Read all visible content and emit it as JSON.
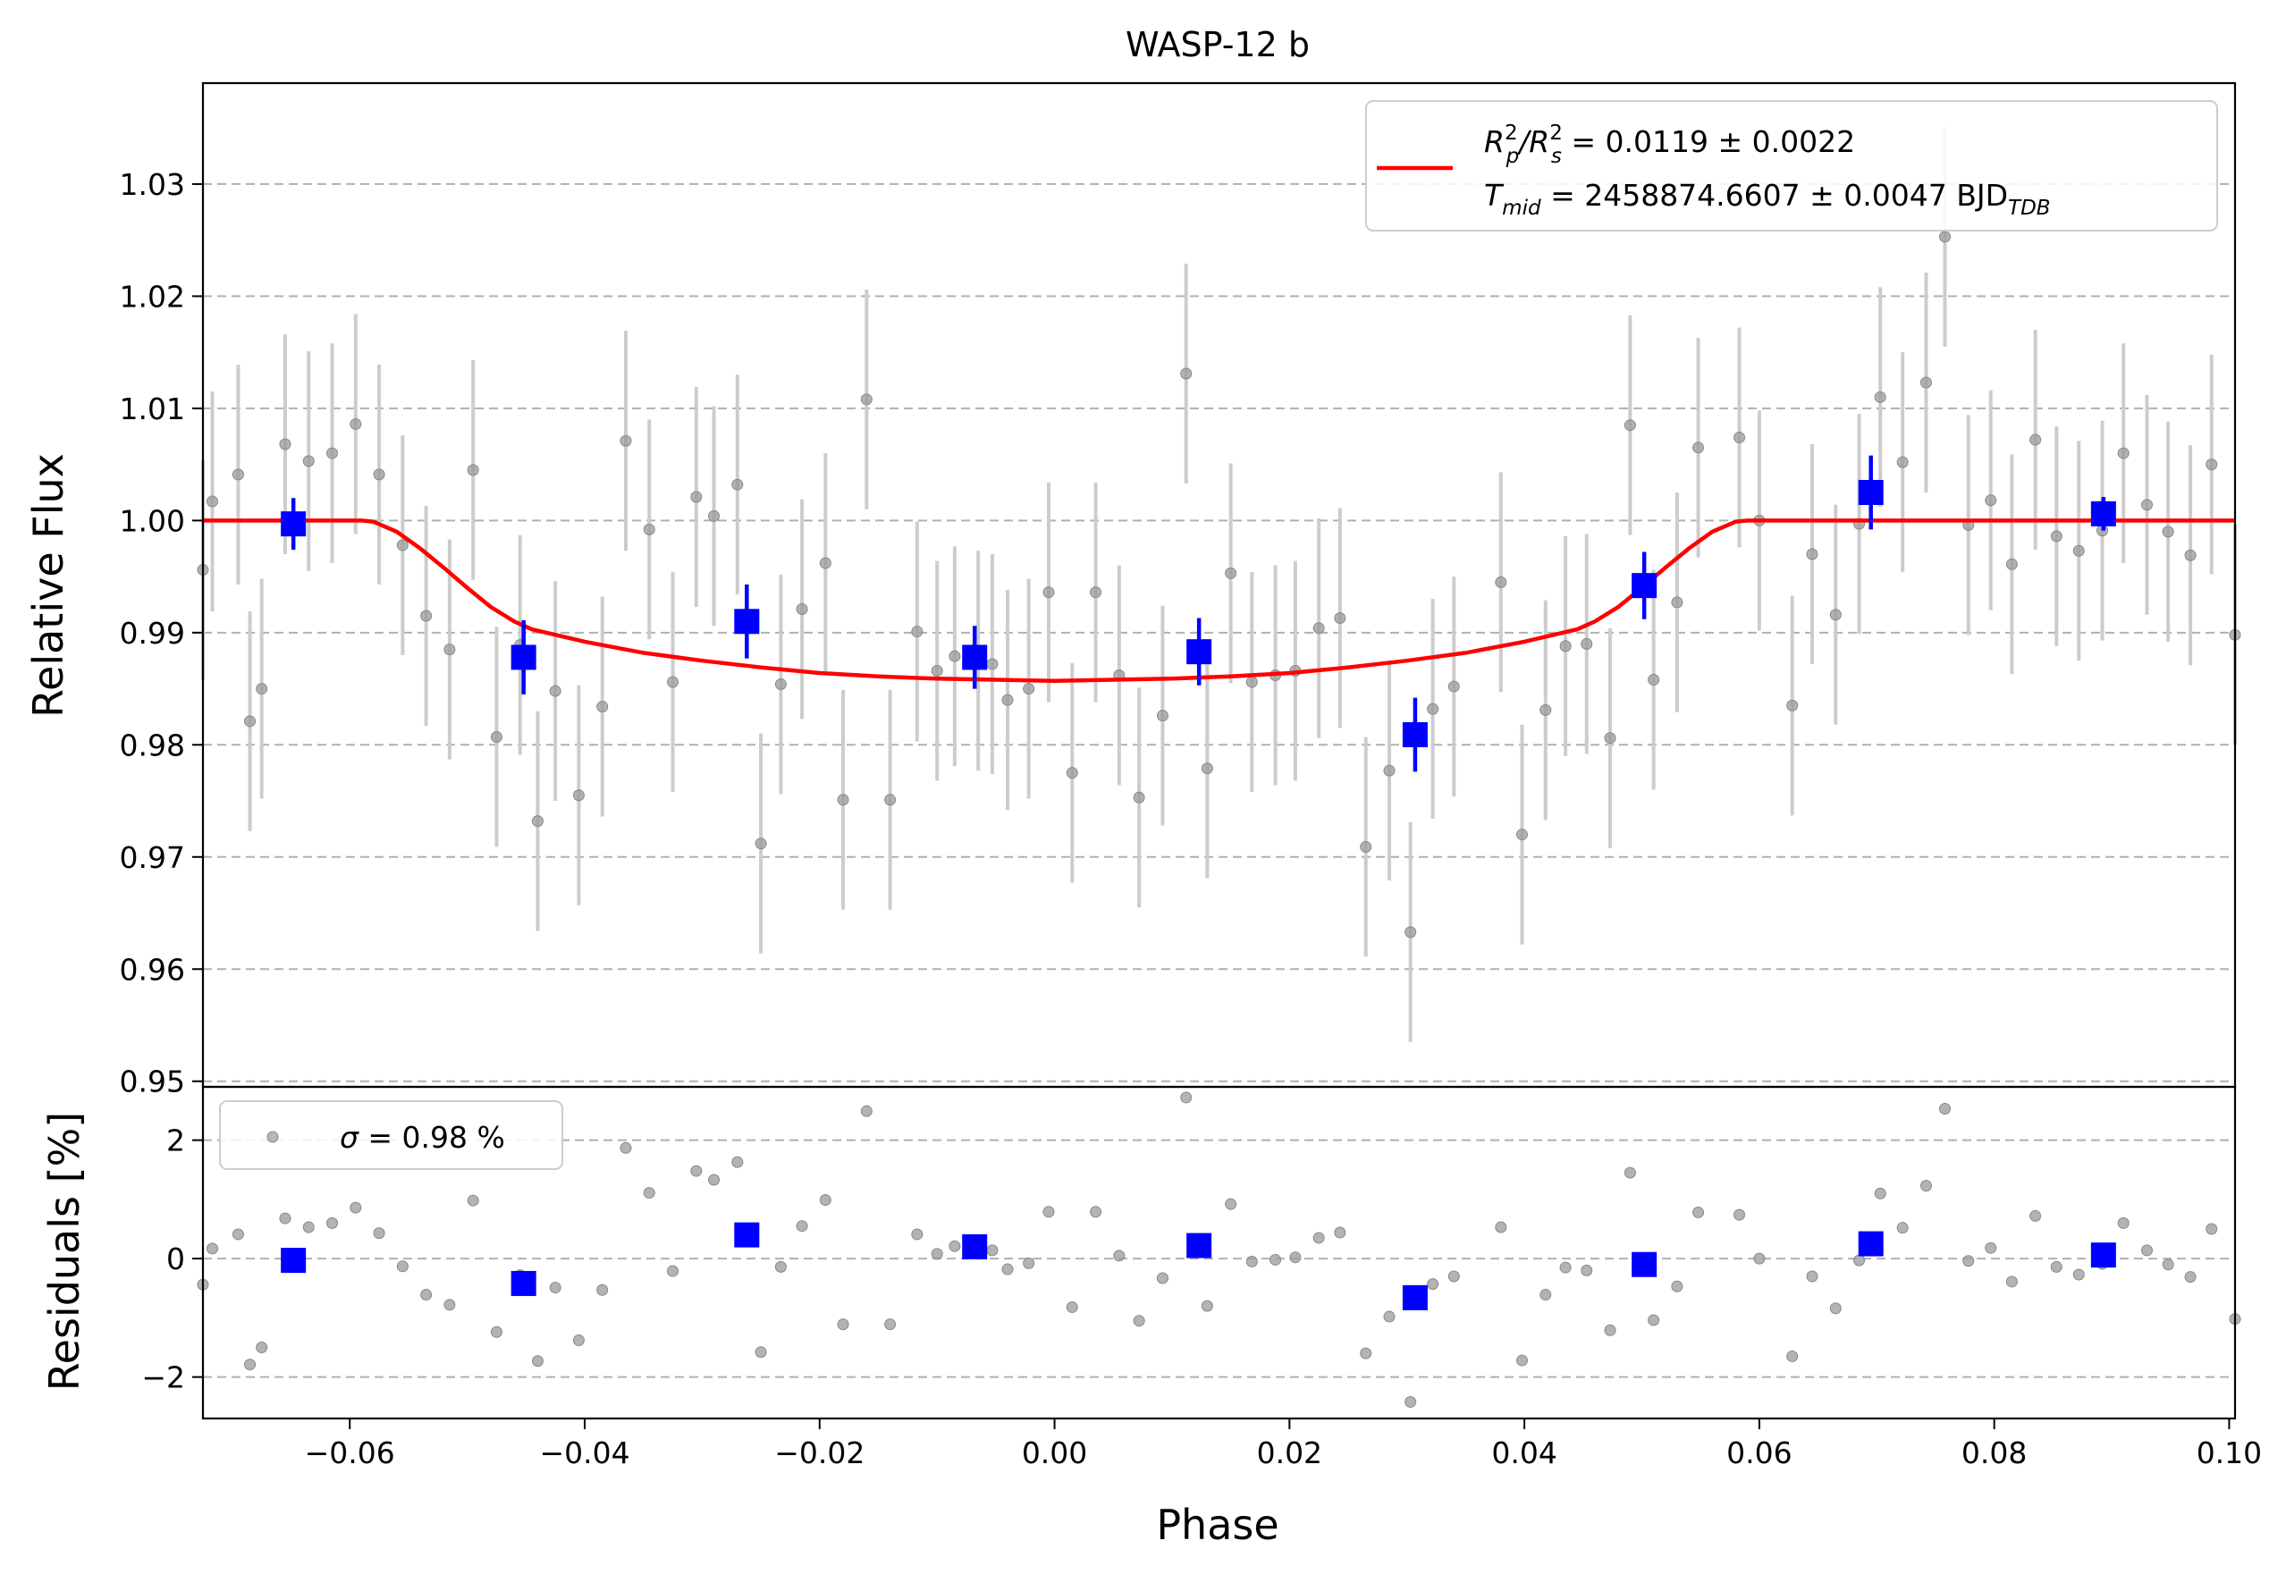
{
  "chart_data": {
    "type": "scatter",
    "title": "WASP-12 b",
    "xlabel": "Phase",
    "xlim": [
      -0.0725,
      0.1005
    ],
    "xticks": [
      -0.06,
      -0.04,
      -0.02,
      0.0,
      0.02,
      0.04,
      0.06,
      0.08,
      0.1
    ],
    "xtick_labels": [
      "−0.06",
      "−0.04",
      "−0.02",
      "0.00",
      "0.02",
      "0.04",
      "0.06",
      "0.08",
      "0.10"
    ],
    "top_panel": {
      "ylabel": "Relative Flux",
      "ylim": [
        0.9495,
        1.039
      ],
      "yticks": [
        0.95,
        0.96,
        0.97,
        0.98,
        0.99,
        1.0,
        1.01,
        1.02,
        1.03
      ],
      "ytick_labels": [
        "0.95",
        "0.96",
        "0.97",
        "0.98",
        "0.99",
        "1.00",
        "1.01",
        "1.02",
        "1.03"
      ],
      "grid": "horizontal-dashed",
      "legend": {
        "placement": "top-right",
        "line1_a": "R",
        "line1_a_sup": "2",
        "line1_a_sub": "p",
        "line1_slash": "/R",
        "line1_b_sup": "2",
        "line1_b_sub": "s",
        "line1_value": " = 0.0119 ± 0.0022",
        "line2_a": "T",
        "line2_a_sub": "mid",
        "line2_value": " = 2458874.6607 ± 0.0047 BJD",
        "line2_unit_sub": "TDB"
      },
      "raw_error": 0.0098,
      "raw_points": [
        [
          -0.0725,
          0.9956
        ],
        [
          -0.0717,
          1.0017
        ],
        [
          -0.0695,
          1.0041
        ],
        [
          -0.0685,
          0.9821
        ],
        [
          -0.0675,
          0.985
        ],
        [
          -0.0655,
          1.0068
        ],
        [
          -0.0635,
          1.0053
        ],
        [
          -0.0615,
          1.006
        ],
        [
          -0.0595,
          1.0086
        ],
        [
          -0.0575,
          1.0041
        ],
        [
          -0.0555,
          0.9978
        ],
        [
          -0.0535,
          0.9915
        ],
        [
          -0.0515,
          0.9885
        ],
        [
          -0.0495,
          1.0045
        ],
        [
          -0.0475,
          0.9807
        ],
        [
          -0.0455,
          0.9889
        ],
        [
          -0.044,
          0.9732
        ],
        [
          -0.0425,
          0.9848
        ],
        [
          -0.0405,
          0.9755
        ],
        [
          -0.0385,
          0.9834
        ],
        [
          -0.0365,
          1.0071
        ],
        [
          -0.0345,
          0.9992
        ],
        [
          -0.0325,
          0.9856
        ],
        [
          -0.0305,
          1.0021
        ],
        [
          -0.029,
          1.0004
        ],
        [
          -0.027,
          1.0032
        ],
        [
          -0.025,
          0.9712
        ],
        [
          -0.0233,
          0.9854
        ],
        [
          -0.0215,
          0.9921
        ],
        [
          -0.0195,
          0.9962
        ],
        [
          -0.018,
          0.9751
        ],
        [
          -0.016,
          1.0108
        ],
        [
          -0.014,
          0.9751
        ],
        [
          -0.0117,
          0.9901
        ],
        [
          -0.01,
          0.9866
        ],
        [
          -0.0085,
          0.9879
        ],
        [
          -0.0065,
          0.9875
        ],
        [
          -0.0053,
          0.9872
        ],
        [
          -0.004,
          0.984
        ],
        [
          -0.0022,
          0.985
        ],
        [
          -0.0005,
          0.9936
        ],
        [
          0.0015,
          0.9775
        ],
        [
          0.0035,
          0.9936
        ],
        [
          0.0055,
          0.9862
        ],
        [
          0.0072,
          0.9753
        ],
        [
          0.0092,
          0.9826
        ],
        [
          0.0112,
          1.0131
        ],
        [
          0.013,
          0.9779
        ],
        [
          0.015,
          0.9953
        ],
        [
          0.0168,
          0.9856
        ],
        [
          0.0188,
          0.9862
        ],
        [
          0.0205,
          0.9866
        ],
        [
          0.0225,
          0.9904
        ],
        [
          0.0243,
          0.9913
        ],
        [
          0.0265,
          0.9709
        ],
        [
          0.0285,
          0.9777
        ],
        [
          0.0303,
          0.9633
        ],
        [
          0.0322,
          0.9832
        ],
        [
          0.034,
          0.9852
        ],
        [
          0.038,
          0.9945
        ],
        [
          0.0398,
          0.972
        ],
        [
          0.0418,
          0.9831
        ],
        [
          0.0435,
          0.9888
        ],
        [
          0.0453,
          0.989
        ],
        [
          0.0473,
          0.9806
        ],
        [
          0.049,
          1.0085
        ],
        [
          0.051,
          0.9858
        ],
        [
          0.053,
          0.9927
        ],
        [
          0.0548,
          1.0065
        ],
        [
          0.0583,
          1.0074
        ],
        [
          0.06,
          1.0
        ],
        [
          0.0628,
          0.9835
        ],
        [
          0.0645,
          0.997
        ],
        [
          0.0665,
          0.9916
        ],
        [
          0.0685,
          0.9997
        ],
        [
          0.0703,
          1.011
        ],
        [
          0.0722,
          1.0052
        ],
        [
          0.0742,
          1.0123
        ],
        [
          0.0758,
          1.0253
        ],
        [
          0.0778,
          0.9996
        ],
        [
          0.0797,
          1.0018
        ],
        [
          0.0815,
          0.9961
        ],
        [
          0.0835,
          1.0072
        ],
        [
          0.0853,
          0.9986
        ],
        [
          0.0872,
          0.9973
        ],
        [
          0.0892,
          0.9991
        ],
        [
          0.091,
          1.006
        ],
        [
          0.093,
          1.0014
        ],
        [
          0.0948,
          0.999
        ],
        [
          0.0967,
          0.9969
        ],
        [
          0.0985,
          1.005
        ],
        [
          0.1005,
          0.9898
        ]
      ],
      "binned_points": [
        [
          -0.0648,
          0.9997,
          0.0023
        ],
        [
          -0.0452,
          0.9878,
          0.0033
        ],
        [
          -0.0262,
          0.991,
          0.0033
        ],
        [
          -0.0068,
          0.9878,
          0.0028
        ],
        [
          0.0123,
          0.9883,
          0.003
        ],
        [
          0.0307,
          0.9809,
          0.0033
        ],
        [
          0.0502,
          0.9942,
          0.003
        ],
        [
          0.0695,
          1.0025,
          0.0033
        ],
        [
          0.0893,
          1.0006,
          0.0015
        ]
      ],
      "model_curve": [
        [
          -0.0725,
          1.0
        ],
        [
          -0.059,
          1.0
        ],
        [
          -0.058,
          0.9999
        ],
        [
          -0.056,
          0.999
        ],
        [
          -0.054,
          0.9975
        ],
        [
          -0.052,
          0.9958
        ],
        [
          -0.05,
          0.994
        ],
        [
          -0.048,
          0.9923
        ],
        [
          -0.046,
          0.991
        ],
        [
          -0.0445,
          0.9903
        ],
        [
          -0.04,
          0.9892
        ],
        [
          -0.035,
          0.9882
        ],
        [
          -0.03,
          0.9875
        ],
        [
          -0.025,
          0.9869
        ],
        [
          -0.02,
          0.9864
        ],
        [
          -0.015,
          0.9861
        ],
        [
          -0.01,
          0.9859
        ],
        [
          -0.005,
          0.9858
        ],
        [
          0.0,
          0.9857
        ],
        [
          0.005,
          0.9858
        ],
        [
          0.01,
          0.9859
        ],
        [
          0.015,
          0.9861
        ],
        [
          0.02,
          0.9864
        ],
        [
          0.025,
          0.9869
        ],
        [
          0.03,
          0.9875
        ],
        [
          0.035,
          0.9882
        ],
        [
          0.04,
          0.9892
        ],
        [
          0.0445,
          0.9903
        ],
        [
          0.046,
          0.991
        ],
        [
          0.048,
          0.9923
        ],
        [
          0.05,
          0.994
        ],
        [
          0.052,
          0.9958
        ],
        [
          0.054,
          0.9975
        ],
        [
          0.056,
          0.999
        ],
        [
          0.058,
          0.9999
        ],
        [
          0.059,
          1.0
        ],
        [
          0.1005,
          1.0
        ]
      ]
    },
    "bottom_panel": {
      "ylabel": "Residuals [%]",
      "ylim": [
        -2.7,
        2.9
      ],
      "yticks": [
        -2,
        0,
        2
      ],
      "ytick_labels": [
        "−2",
        "0",
        "2"
      ],
      "grid": "horizontal-dashed",
      "legend": {
        "placement": "top-left",
        "sigma_symbol": "σ",
        "sigma_text": " = 0.98 %"
      },
      "raw_residuals": [
        [
          -0.0725,
          -0.44
        ],
        [
          -0.0717,
          0.17
        ],
        [
          -0.0695,
          0.41
        ],
        [
          -0.0685,
          -1.79
        ],
        [
          -0.0675,
          -1.5
        ],
        [
          -0.0655,
          0.68
        ],
        [
          -0.0635,
          0.53
        ],
        [
          -0.0615,
          0.6
        ],
        [
          -0.0595,
          0.86
        ],
        [
          -0.0575,
          0.43
        ],
        [
          -0.0555,
          -0.13
        ],
        [
          -0.0535,
          -0.61
        ],
        [
          -0.0515,
          -0.78
        ],
        [
          -0.0495,
          0.98
        ],
        [
          -0.0475,
          -1.24
        ],
        [
          -0.0455,
          -0.28
        ],
        [
          -0.044,
          -1.73
        ],
        [
          -0.0425,
          -0.49
        ],
        [
          -0.0405,
          -1.38
        ],
        [
          -0.0385,
          -0.53
        ],
        [
          -0.0365,
          1.87
        ],
        [
          -0.0345,
          1.11
        ],
        [
          -0.0325,
          -0.21
        ],
        [
          -0.0305,
          1.48
        ],
        [
          -0.029,
          1.33
        ],
        [
          -0.027,
          1.63
        ],
        [
          -0.025,
          -1.58
        ],
        [
          -0.0233,
          -0.14
        ],
        [
          -0.0215,
          0.55
        ],
        [
          -0.0195,
          0.99
        ],
        [
          -0.018,
          -1.11
        ],
        [
          -0.016,
          2.49
        ],
        [
          -0.014,
          -1.11
        ],
        [
          -0.0117,
          0.41
        ],
        [
          -0.01,
          0.08
        ],
        [
          -0.0085,
          0.21
        ],
        [
          -0.0065,
          0.17
        ],
        [
          -0.0053,
          0.14
        ],
        [
          -0.004,
          -0.18
        ],
        [
          -0.0022,
          -0.08
        ],
        [
          -0.0005,
          0.79
        ],
        [
          0.0015,
          -0.82
        ],
        [
          0.0035,
          0.79
        ],
        [
          0.0055,
          0.05
        ],
        [
          0.0072,
          -1.05
        ],
        [
          0.0092,
          -0.33
        ],
        [
          0.0112,
          2.72
        ],
        [
          0.013,
          -0.8
        ],
        [
          0.015,
          0.92
        ],
        [
          0.0168,
          -0.05
        ],
        [
          0.0188,
          -0.02
        ],
        [
          0.0205,
          0.02
        ],
        [
          0.0225,
          0.35
        ],
        [
          0.0243,
          0.44
        ],
        [
          0.0265,
          -1.6
        ],
        [
          0.0285,
          -0.98
        ],
        [
          0.0303,
          -2.42
        ],
        [
          0.0322,
          -0.43
        ],
        [
          0.034,
          -0.3
        ],
        [
          0.038,
          0.53
        ],
        [
          0.0398,
          -1.72
        ],
        [
          0.0418,
          -0.61
        ],
        [
          0.0435,
          -0.15
        ],
        [
          0.0453,
          -0.2
        ],
        [
          0.0473,
          -1.21
        ],
        [
          0.049,
          1.45
        ],
        [
          0.051,
          -1.04
        ],
        [
          0.053,
          -0.47
        ],
        [
          0.0548,
          0.78
        ],
        [
          0.0583,
          0.74
        ],
        [
          0.06,
          0.0
        ],
        [
          0.0628,
          -1.65
        ],
        [
          0.0645,
          -0.3
        ],
        [
          0.0665,
          -0.84
        ],
        [
          0.0685,
          -0.03
        ],
        [
          0.0703,
          1.1
        ],
        [
          0.0722,
          0.52
        ],
        [
          0.0742,
          1.23
        ],
        [
          0.0758,
          2.53
        ],
        [
          0.0778,
          -0.04
        ],
        [
          0.0797,
          0.18
        ],
        [
          0.0815,
          -0.39
        ],
        [
          0.0835,
          0.72
        ],
        [
          0.0853,
          -0.14
        ],
        [
          0.0872,
          -0.27
        ],
        [
          0.0892,
          -0.09
        ],
        [
          0.091,
          0.6
        ],
        [
          0.093,
          0.14
        ],
        [
          0.0948,
          -0.1
        ],
        [
          0.0967,
          -0.31
        ],
        [
          0.0985,
          0.5
        ],
        [
          0.1005,
          -1.02
        ]
      ],
      "binned_residuals": [
        [
          -0.0648,
          -0.03
        ],
        [
          -0.0452,
          -0.42
        ],
        [
          -0.0262,
          0.4
        ],
        [
          -0.0068,
          0.2
        ],
        [
          0.0123,
          0.22
        ],
        [
          0.0307,
          -0.66
        ],
        [
          0.0502,
          -0.1
        ],
        [
          0.0695,
          0.25
        ],
        [
          0.0893,
          0.06
        ]
      ]
    },
    "colors": {
      "raw_point": "#999999",
      "raw_error": "#cccccc",
      "binned": "#0000ff",
      "model": "#ff0000",
      "grid": "#b0b0b0"
    }
  }
}
